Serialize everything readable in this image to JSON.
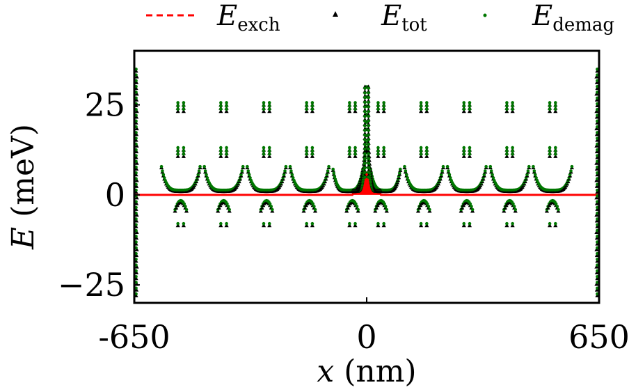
{
  "chart_data": {
    "type": "scatter",
    "xlabel_var": "x",
    "xlabel_unit": "(nm)",
    "ylabel_var": "E",
    "ylabel_unit": "(meV)",
    "xlim": [
      -650,
      650
    ],
    "ylim": [
      -30,
      40
    ],
    "x_ticks": [
      -650,
      0,
      650
    ],
    "x_tick_labels": [
      "-650",
      "0",
      "650"
    ],
    "y_ticks": [
      -25,
      0,
      25
    ],
    "y_tick_labels": [
      "−25",
      "0",
      "25"
    ],
    "grid": false,
    "legend_position": "top",
    "series": [
      {
        "name": "E",
        "sub": "exch",
        "marker": "dashed-line",
        "color": "#ff0000"
      },
      {
        "name": "E",
        "sub": "tot",
        "marker": "triangle",
        "color": "#000000"
      },
      {
        "name": "E",
        "sub": "demag",
        "marker": "dot",
        "color": "#007700"
      }
    ],
    "domain_centers": [
      -520,
      -400,
      -280,
      -160,
      -40,
      0,
      40,
      160,
      280,
      400,
      520
    ],
    "central_peak_max": 30,
    "wall_peak_max": 12,
    "exch_peak_max": 6,
    "level_tops": [
      25,
      12.5
    ],
    "level_bottom": -8.5
  }
}
